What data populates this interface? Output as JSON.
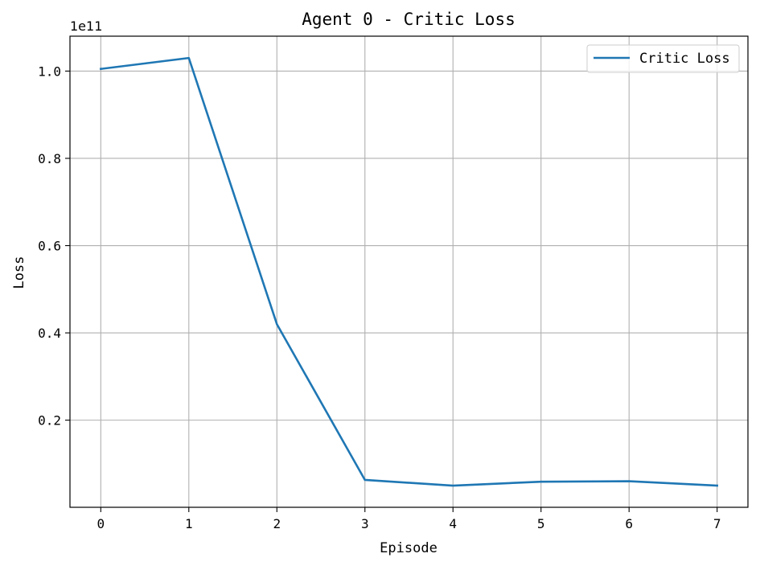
{
  "chart_data": {
    "type": "line",
    "title": "Agent 0 - Critic Loss",
    "xlabel": "Episode",
    "ylabel": "Loss",
    "y_offset_label": "1e11",
    "x_ticks": [
      "0",
      "1",
      "2",
      "3",
      "4",
      "5",
      "6",
      "7"
    ],
    "y_ticks": [
      {
        "value": 0.2,
        "label": "0.2"
      },
      {
        "value": 0.4,
        "label": "0.4"
      },
      {
        "value": 0.6,
        "label": "0.6"
      },
      {
        "value": 0.8,
        "label": "0.8"
      },
      {
        "value": 1.0,
        "label": "1.0"
      }
    ],
    "xlim": [
      -0.35,
      7.35
    ],
    "ylim": [
      0.0003,
      1.08
    ],
    "grid": true,
    "legend_position": "top-right",
    "series": [
      {
        "name": "Critic Loss",
        "color": "#1f77b4",
        "x": [
          0,
          1,
          2,
          3,
          4,
          5,
          6,
          7
        ],
        "y": [
          1.005,
          1.03,
          0.42,
          0.063,
          0.05,
          0.059,
          0.06,
          0.05
        ]
      }
    ]
  }
}
